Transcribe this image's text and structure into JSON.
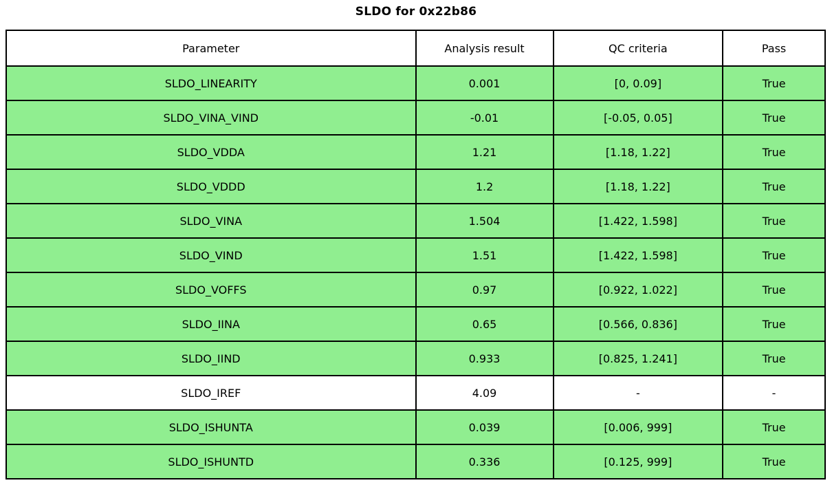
{
  "title": "SLDO for 0x22b86",
  "colors": {
    "pass_green": "#90ee90",
    "header_bg": "#ffffff",
    "border": "#000000"
  },
  "chart_data": {
    "type": "table",
    "title": "SLDO for 0x22b86",
    "columns": [
      "Parameter",
      "Analysis result",
      "QC criteria",
      "Pass"
    ],
    "rows": [
      {
        "parameter": "SLDO_LINEARITY",
        "analysis_result": "0.001",
        "qc_criteria": "[0, 0.09]",
        "pass": "True",
        "highlight": true
      },
      {
        "parameter": "SLDO_VINA_VIND",
        "analysis_result": "-0.01",
        "qc_criteria": "[-0.05, 0.05]",
        "pass": "True",
        "highlight": true
      },
      {
        "parameter": "SLDO_VDDA",
        "analysis_result": "1.21",
        "qc_criteria": "[1.18, 1.22]",
        "pass": "True",
        "highlight": true
      },
      {
        "parameter": "SLDO_VDDD",
        "analysis_result": "1.2",
        "qc_criteria": "[1.18, 1.22]",
        "pass": "True",
        "highlight": true
      },
      {
        "parameter": "SLDO_VINA",
        "analysis_result": "1.504",
        "qc_criteria": "[1.422, 1.598]",
        "pass": "True",
        "highlight": true
      },
      {
        "parameter": "SLDO_VIND",
        "analysis_result": "1.51",
        "qc_criteria": "[1.422, 1.598]",
        "pass": "True",
        "highlight": true
      },
      {
        "parameter": "SLDO_VOFFS",
        "analysis_result": "0.97",
        "qc_criteria": "[0.922, 1.022]",
        "pass": "True",
        "highlight": true
      },
      {
        "parameter": "SLDO_IINA",
        "analysis_result": "0.65",
        "qc_criteria": "[0.566, 0.836]",
        "pass": "True",
        "highlight": true
      },
      {
        "parameter": "SLDO_IIND",
        "analysis_result": "0.933",
        "qc_criteria": "[0.825, 1.241]",
        "pass": "True",
        "highlight": true
      },
      {
        "parameter": "SLDO_IREF",
        "analysis_result": "4.09",
        "qc_criteria": "-",
        "pass": "-",
        "highlight": false
      },
      {
        "parameter": "SLDO_ISHUNTA",
        "analysis_result": "0.039",
        "qc_criteria": "[0.006, 999]",
        "pass": "True",
        "highlight": true
      },
      {
        "parameter": "SLDO_ISHUNTD",
        "analysis_result": "0.336",
        "qc_criteria": "[0.125, 999]",
        "pass": "True",
        "highlight": true
      }
    ]
  }
}
